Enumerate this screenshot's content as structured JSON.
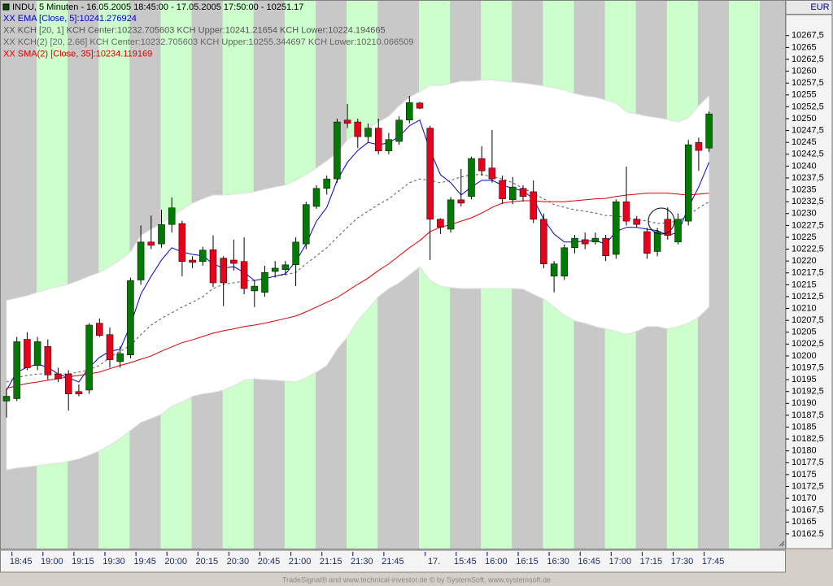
{
  "chart_data": {
    "type": "candlestick",
    "title": "INDU, 5 Minuten - 16.05.2005 18:45:00 - 17.05.2005 17:50:00 - 10251.17",
    "currency": "EUR",
    "footer": "TradeSignal® and www.technical-investor.de © by SystemSoft, www.systemsoft.de",
    "categories": [
      null,
      "18:45",
      null,
      null,
      "19:00",
      null,
      null,
      "19:15",
      null,
      null,
      "19:30",
      null,
      null,
      "19:45",
      null,
      null,
      "20:00",
      null,
      null,
      "20:15",
      null,
      null,
      "20:30",
      null,
      null,
      "20:45",
      null,
      null,
      "21:00",
      null,
      null,
      "21:15",
      null,
      null,
      "21:30",
      null,
      null,
      "21:45",
      null,
      null,
      null,
      "17.",
      null,
      null,
      "15:45",
      null,
      null,
      "16:00",
      null,
      null,
      "16:15",
      null,
      null,
      "16:30",
      null,
      null,
      "16:45",
      null,
      null,
      "17:00",
      null,
      null,
      "17:15",
      null,
      null,
      "17:30",
      null,
      null,
      "17:45"
    ],
    "up_color": "#007a00",
    "down_color": "#e8001c",
    "open": [
      10190.5,
      10191,
      10203.5,
      10198,
      10202,
      10196.2,
      10196.2,
      10192.5,
      10192.8,
      10206.9,
      10204.5,
      10198.8,
      10200.2,
      10216,
      10224,
      10223.6,
      10227.7,
      10227.9,
      10220.2,
      10219.9,
      10222.4,
      10220.6,
      10220.2,
      10219.9,
      10213.7,
      10213.4,
      10217.8,
      10218.2,
      10219.2,
      10223.6,
      10231.5,
      10235.3,
      10237.3,
      10249.7,
      10249.3,
      10246.2,
      10248,
      10243.2,
      10245.2,
      10249.7,
      10253.3,
      10248,
      10228.8,
      10226.7,
      10232.9,
      10233.6,
      10241.6,
      10239.6,
      10237,
      10232.9,
      10235.3,
      10234.6,
      10228.8,
      10216.8,
      10216.8,
      10222.8,
      10224.5,
      10224,
      10224.8,
      10221.4,
      10232.5,
      10228.8,
      10226.2,
      10222,
      10228.8,
      10224,
      10228.4,
      10245,
      10243.8
    ],
    "high": [
      10193,
      10204,
      10205,
      10204,
      10203.5,
      10197.5,
      10197,
      10194,
      10206.9,
      10207.9,
      10206,
      10202,
      10216.5,
      10227.5,
      10229.6,
      10230.8,
      10233.4,
      10228.5,
      10221,
      10223,
      10225.4,
      10221,
      10224.5,
      10225,
      10216,
      10219,
      10220,
      10220,
      10225,
      10232.5,
      10236,
      10238,
      10250,
      10253.1,
      10250,
      10249,
      10250,
      10247,
      10250.5,
      10254.8,
      10253.5,
      10248.5,
      10229,
      10233.5,
      10239.4,
      10242,
      10244.2,
      10247.6,
      10238,
      10237.7,
      10236,
      10237,
      10230,
      10220,
      10223.5,
      10225.5,
      10226,
      10226,
      10225.5,
      10233,
      10239.9,
      10229.5,
      10227,
      10227,
      10231.3,
      10230,
      10245.5,
      10246,
      10251.5
    ],
    "low": [
      10187,
      10190.5,
      10197,
      10197,
      10195,
      10194.5,
      10188.5,
      10191.5,
      10192,
      10204,
      10197.5,
      10197.5,
      10199.5,
      10215,
      10222.5,
      10222.8,
      10226,
      10216.8,
      10218.5,
      10219,
      10214.5,
      10210.5,
      10218,
      10213,
      10210.3,
      10212.5,
      10216.5,
      10217,
      10214.7,
      10222.5,
      10231,
      10234,
      10236.5,
      10248,
      10243.8,
      10245,
      10242.5,
      10242.5,
      10244.5,
      10249,
      10252,
      10220.2,
      10225.7,
      10226,
      10231.5,
      10233,
      10238,
      10236.5,
      10232,
      10232,
      10232.5,
      10228,
      10218.5,
      10213.4,
      10216,
      10221.6,
      10222.5,
      10223.5,
      10220,
      10220.5,
      10227.5,
      10227,
      10220.5,
      10221,
      10224.5,
      10223.5,
      10227.5,
      10239,
      10243
    ],
    "close": [
      10191.5,
      10203,
      10197.5,
      10203,
      10196,
      10195.2,
      10192,
      10192,
      10206.5,
      10204.3,
      10199.2,
      10200.5,
      10215.9,
      10224,
      10223.3,
      10227.7,
      10231.2,
      10219.9,
      10219.7,
      10222.3,
      10215.4,
      10215.4,
      10219.5,
      10214.2,
      10214.7,
      10217.6,
      10218.5,
      10219.2,
      10224,
      10231.9,
      10235.3,
      10237.3,
      10249.3,
      10249,
      10246.2,
      10248,
      10243.2,
      10245.6,
      10249.7,
      10253.4,
      10252.2,
      10228.8,
      10227.1,
      10232.9,
      10232.2,
      10241.6,
      10239,
      10237.3,
      10233.1,
      10235.6,
      10233.6,
      10228.8,
      10219.4,
      10219.4,
      10222.8,
      10224.8,
      10223.6,
      10224.8,
      10221.1,
      10232.5,
      10228.4,
      10227.7,
      10221.6,
      10226.2,
      10225.4,
      10228.8,
      10244.5,
      10243.3,
      10251
    ],
    "indicators": [
      {
        "name": "XX EMA [Close, 5]:10241.276924",
        "color": "#0000cc",
        "values": [
          10192.8,
          10196.6,
          10197.6,
          10198.3,
          10197.6,
          10196.2,
          10195.4,
          10194.5,
          10197.6,
          10199.7,
          10201,
          10201.4,
          10206.5,
          10213,
          10216.8,
          10220.2,
          10222.8,
          10221.9,
          10221.4,
          10221.1,
          10219.4,
          10218.5,
          10218.8,
          10217.6,
          10215.9,
          10216.3,
          10216.8,
          10217.3,
          10219.9,
          10223.6,
          10228.4,
          10231.3,
          10237,
          10240.8,
          10243.3,
          10245,
          10244.5,
          10244.9,
          10246.2,
          10248.5,
          10249.7,
          10243.3,
          10238.2,
          10236.5,
          10233.9,
          10235.6,
          10237,
          10237,
          10236,
          10235.3,
          10234.8,
          10233.1,
          10228.8,
          10225.7,
          10224,
          10224,
          10224.2,
          10224.3,
          10223.6,
          10226.2,
          10227.1,
          10227.1,
          10226.7,
          10226.4,
          10225.4,
          10226,
          10231.3,
          10235.6,
          10240.8
        ]
      },
      {
        "name": "XX KCH [20, 1] KCH Center:10232.705603 KCH Upper:10241.21654 KCH Lower:10224.194665",
        "color": "#555555",
        "dashed": true,
        "values": [
          10194.5,
          10195.4,
          10195.9,
          10196.2,
          10196.2,
          10196.2,
          10196.2,
          10196.6,
          10197.1,
          10198,
          10199.7,
          10201,
          10202.2,
          10204.5,
          10206.5,
          10207.9,
          10209.1,
          10210.3,
          10211.3,
          10212.5,
          10214.2,
          10215.1,
          10215.4,
          10215.8,
          10215.9,
          10216.4,
          10216.8,
          10217.1,
          10217.6,
          10219.4,
          10221.1,
          10222.8,
          10225,
          10227.1,
          10229.1,
          10230.5,
          10231.9,
          10233.1,
          10234.8,
          10236.5,
          10237.3,
          10237,
          10236.5,
          10237,
          10237.7,
          10238.2,
          10238.2,
          10237.8,
          10237.3,
          10236.5,
          10235.3,
          10234.3,
          10233.1,
          10231.9,
          10231.3,
          10230.8,
          10230.5,
          10230.1,
          10229.6,
          10229.5,
          10229.1,
          10228.8,
          10228.4,
          10227.9,
          10228.1,
          10228.4,
          10229.6,
          10231.2,
          10232.5
        ]
      },
      {
        "name": "XX KCH(2) [20, 2.66] KCH Center:10232.705603 KCH Upper:10255.344697 KCH Lower:10210.066509",
        "color": "#666666",
        "fill": "#ffffff",
        "upper": [
          10211.7,
          10212.2,
          10212.7,
          10213.4,
          10214.1,
          10214.6,
          10215.1,
          10215.9,
          10216.8,
          10217.6,
          10218.8,
          10220.2,
          10221.9,
          10225.4,
          10226.7,
          10227.9,
          10229.6,
          10230.8,
          10232.2,
          10233.1,
          10233.9,
          10233.9,
          10234.1,
          10234.3,
          10234.6,
          10235.1,
          10235.6,
          10236,
          10237,
          10238.2,
          10239.6,
          10241.1,
          10242.8,
          10245.6,
          10246.8,
          10248,
          10249.3,
          10250.5,
          10252.7,
          10254.5,
          10255.7,
          10257,
          10257,
          10257.4,
          10257.9,
          10257.9,
          10258.1,
          10258.2,
          10257.9,
          10257.7,
          10257.5,
          10257.2,
          10256.9,
          10256.5,
          10256,
          10255.3,
          10254.8,
          10254.5,
          10253.9,
          10253.3,
          10251.4,
          10251,
          10250.5,
          10250.2,
          10249.8,
          10249.3,
          10250.2,
          10252.7,
          10254.8
        ],
        "lower": [
          10176,
          10176.4,
          10176.6,
          10176.9,
          10177.2,
          10177.4,
          10177.8,
          10178.3,
          10179.1,
          10180,
          10181.2,
          10182.6,
          10184.3,
          10186,
          10186.8,
          10187.7,
          10189.4,
          10190.3,
          10191.5,
          10192,
          10192.3,
          10192.8,
          10193.7,
          10194.9,
          10195.2,
          10195,
          10194.9,
          10194.7,
          10194.5,
          10195.4,
          10196.6,
          10198,
          10201.4,
          10204,
          10207.4,
          10209.9,
          10212.5,
          10214.2,
          10215.4,
          10217.1,
          10218.8,
          10215.9,
          10214.7,
          10214.4,
          10214.2,
          10214.2,
          10214.2,
          10214.2,
          10214.2,
          10214.2,
          10214.1,
          10213,
          10212,
          10210.3,
          10208.6,
          10207.4,
          10206.9,
          10206.2,
          10205.7,
          10205.2,
          10204.5,
          10205.2,
          10206.2,
          10206.2,
          10205.7,
          10206.2,
          10206.9,
          10208.2,
          10210.3
        ]
      },
      {
        "name": "XX SMA(2) [Close, 35]:10234.119169",
        "color": "#dd0000",
        "values": [
          10193.2,
          10193.7,
          10194.2,
          10194.5,
          10194.9,
          10195.2,
          10195.6,
          10195.9,
          10196.2,
          10196.6,
          10197.3,
          10198,
          10198.6,
          10199.3,
          10200,
          10201,
          10201.9,
          10202.8,
          10203.4,
          10204.1,
          10204.8,
          10205.3,
          10205.7,
          10206.2,
          10206.5,
          10206.9,
          10207.4,
          10207.9,
          10208.4,
          10209.3,
          10210.3,
          10211.3,
          10212.3,
          10213.7,
          10215.1,
          10216.4,
          10218,
          10219.4,
          10221.1,
          10222.8,
          10224.3,
          10226.2,
          10227.1,
          10227.7,
          10228.4,
          10229.1,
          10230.1,
          10231.3,
          10232.2,
          10232.5,
          10232.7,
          10232.7,
          10232.5,
          10232.5,
          10232.5,
          10232.7,
          10232.9,
          10233.1,
          10233.2,
          10233.6,
          10233.9,
          10234.1,
          10234.3,
          10234.3,
          10234.3,
          10234.1,
          10233.9,
          10234.1,
          10234.3
        ]
      }
    ],
    "ylim": [
      10159.4,
      10275.0
    ],
    "yticks": [
      10162.5,
      10165,
      {
        "value": 10167.5,
        "label": "10167,5"
      },
      10170,
      {
        "value": 10172.5,
        "label": "10172,5"
      },
      10175,
      {
        "value": 10177.5,
        "label": "10177,5"
      },
      10180,
      {
        "value": 10182.5,
        "label": "10182,5"
      },
      10185,
      {
        "value": 10187.5,
        "label": "10187,5"
      },
      10190,
      {
        "value": 10192.5,
        "label": "10192,5"
      },
      10195,
      {
        "value": 10197.5,
        "label": "10197,5"
      },
      10200,
      {
        "value": 10202.5,
        "label": "10202,5"
      },
      10205,
      {
        "value": 10207.5,
        "label": "10207,5"
      },
      10210,
      {
        "value": 10212.5,
        "label": "10212,5"
      },
      10215,
      {
        "value": 10217.5,
        "label": "10217,5"
      },
      10220,
      {
        "value": 10222.5,
        "label": "10222,5"
      },
      10225,
      {
        "value": 10227.5,
        "label": "10227,5"
      },
      10230,
      {
        "value": 10232.5,
        "label": "10232,5"
      },
      10235,
      {
        "value": 10237.5,
        "label": "10237,5"
      },
      10240,
      {
        "value": 10242.5,
        "label": "10242,5"
      },
      10245,
      {
        "value": 10247.5,
        "label": "10247,5"
      },
      10250,
      {
        "value": 10252.5,
        "label": "10252,5"
      },
      10255,
      {
        "value": 10257.5,
        "label": "10257,5"
      },
      10260,
      {
        "value": 10262.5,
        "label": "10262,5"
      },
      10265,
      {
        "value": 10267.5,
        "label": "10267,5"
      }
    ],
    "stripe_colors": [
      "#c8c8c8",
      "#ccffcc"
    ]
  }
}
